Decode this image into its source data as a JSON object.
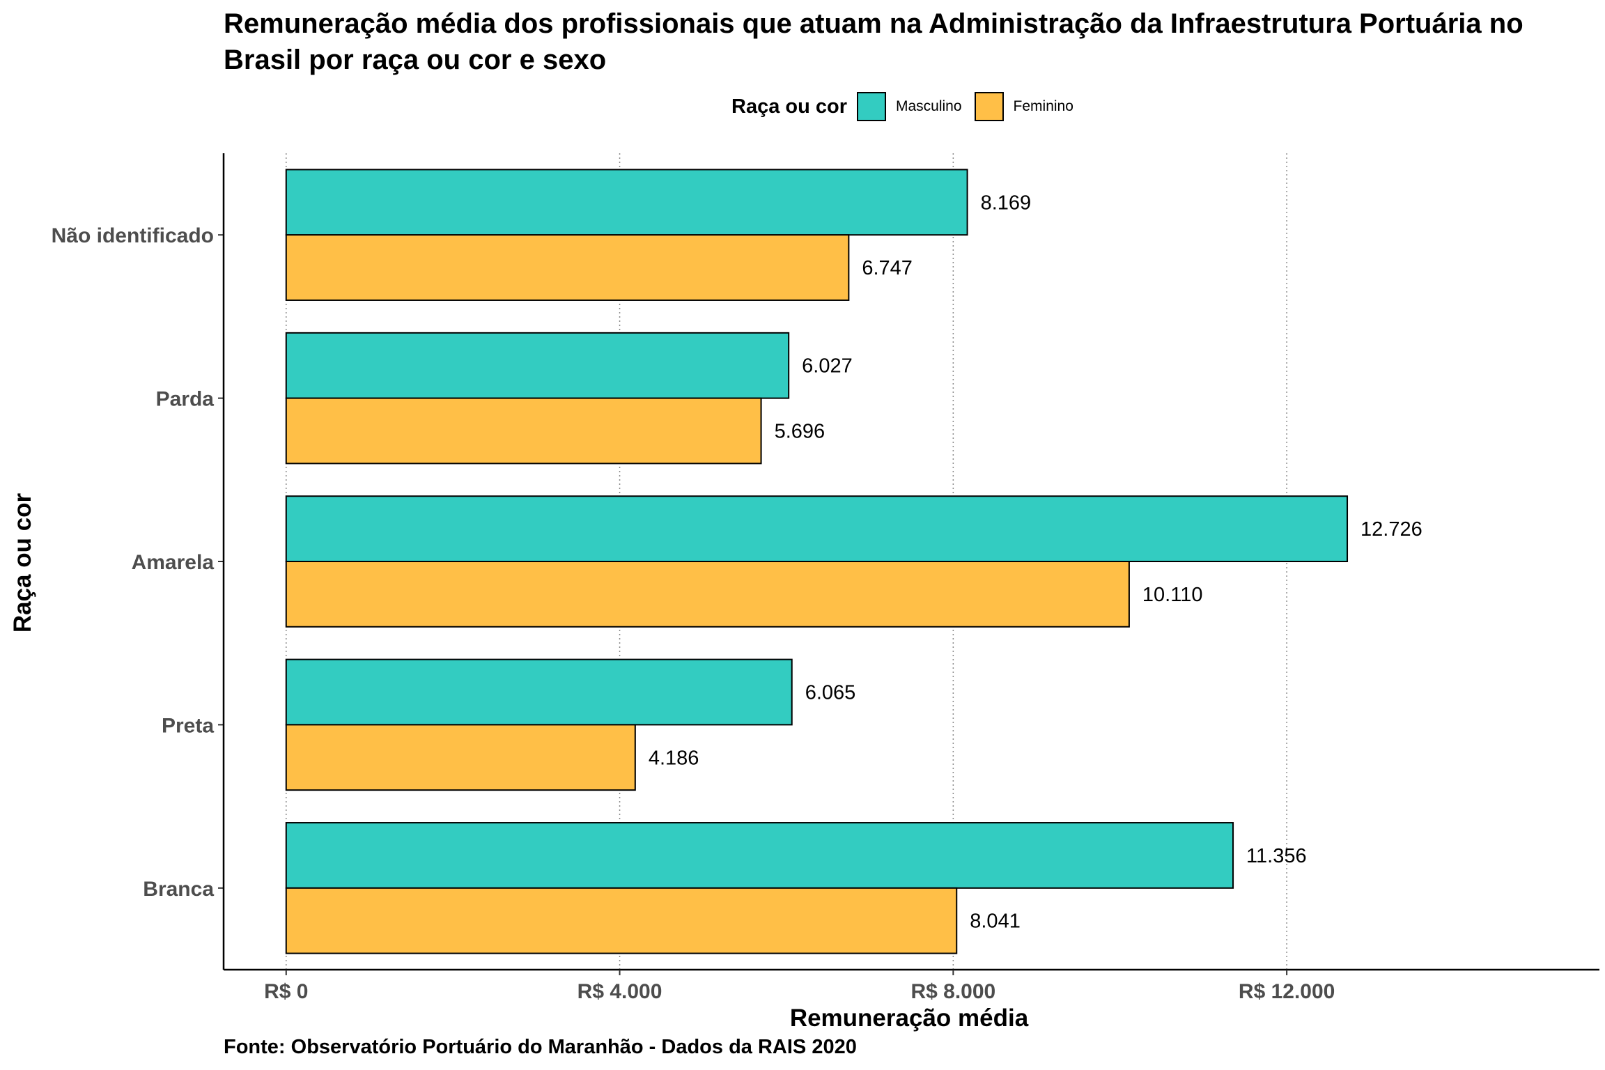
{
  "chart_data": {
    "type": "bar",
    "orientation": "horizontal",
    "title": "Remuneração média dos profissionais que atuam na Administração da Infraestrutura Portuária no Brasil por raça ou cor e sexo",
    "xlabel": "Remuneração média",
    "ylabel": "Raça ou cor",
    "categories": [
      "Não identificado",
      "Parda",
      "Amarela",
      "Preta",
      "Branca"
    ],
    "series": [
      {
        "name": "Masculino",
        "color": "#33ccc1",
        "values": [
          8169,
          6027,
          12726,
          6065,
          11356
        ],
        "labels": [
          "8.169",
          "6.027",
          "12.726",
          "6.065",
          "11.356"
        ]
      },
      {
        "name": "Feminino",
        "color": "#ffbf47",
        "values": [
          6747,
          5696,
          10110,
          4186,
          8041
        ],
        "labels": [
          "6.747",
          "5.696",
          "10.110",
          "4.186",
          "8.041"
        ]
      }
    ],
    "xticks": [
      0,
      4000,
      8000,
      12000
    ],
    "xtick_labels": [
      "R$ 0",
      "R$ 4.000",
      "R$ 8.000",
      "R$ 12.000"
    ],
    "xlim": [
      -750,
      15750
    ],
    "grid": "vertical dotted",
    "legend_title": "Raça ou cor",
    "legend_position": "top",
    "source": "Fonte: Observatório Portuário do Maranhão - Dados da RAIS 2020"
  }
}
